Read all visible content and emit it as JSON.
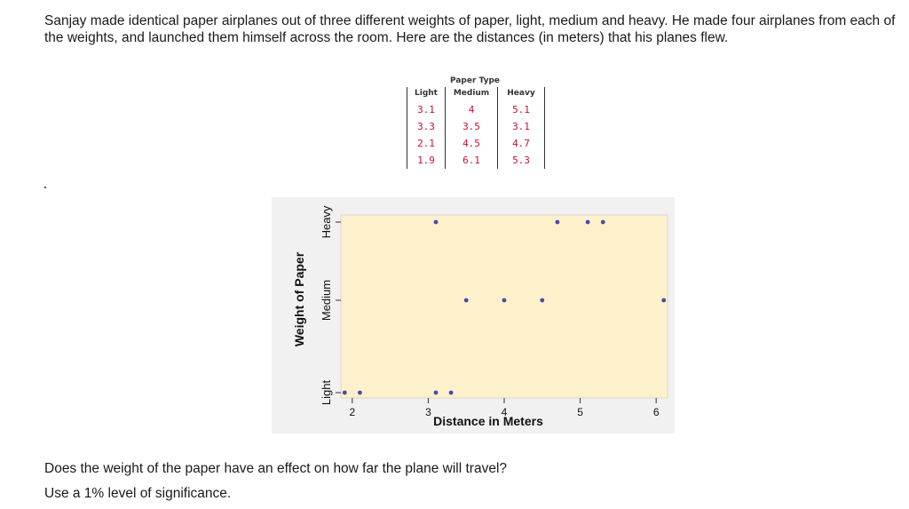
{
  "intro_text": "Sanjay made identical paper airplanes out of three different weights of paper, light, medium and heavy. He made four airplanes from each of the weights, and launched them himself across the room. Here are the distances (in meters) that his planes flew.",
  "table": {
    "title": "Paper Type",
    "headers": [
      "Light",
      "Medium",
      "Heavy"
    ],
    "rows": [
      [
        "3.1",
        "4",
        "5.1"
      ],
      [
        "3.3",
        "3.5",
        "3.1"
      ],
      [
        "2.1",
        "4.5",
        "4.7"
      ],
      [
        "1.9",
        "6.1",
        "5.3"
      ]
    ]
  },
  "chart_data": {
    "type": "scatter",
    "xlabel": "Distance in Meters",
    "ylabel": "Weight of Paper",
    "categories": [
      "Light",
      "Medium",
      "Heavy"
    ],
    "x_ticks": [
      "2",
      "3",
      "4",
      "5",
      "6"
    ],
    "xlim": [
      1.85,
      6.15
    ],
    "grid": false,
    "background_color": "#fdf1cc",
    "marker_color": "#4a4aa8",
    "points": [
      {
        "x": 1.9,
        "y": "Light"
      },
      {
        "x": 2.1,
        "y": "Light"
      },
      {
        "x": 3.1,
        "y": "Light"
      },
      {
        "x": 3.3,
        "y": "Light"
      },
      {
        "x": 3.5,
        "y": "Medium"
      },
      {
        "x": 4.0,
        "y": "Medium"
      },
      {
        "x": 4.5,
        "y": "Medium"
      },
      {
        "x": 6.1,
        "y": "Medium"
      },
      {
        "x": 3.1,
        "y": "Heavy"
      },
      {
        "x": 4.7,
        "y": "Heavy"
      },
      {
        "x": 5.1,
        "y": "Heavy"
      },
      {
        "x": 5.3,
        "y": "Heavy"
      }
    ]
  },
  "question": "Does the weight of the paper have an effect on how far the plane will travel?",
  "instruction": "Use a 1% level of significance."
}
